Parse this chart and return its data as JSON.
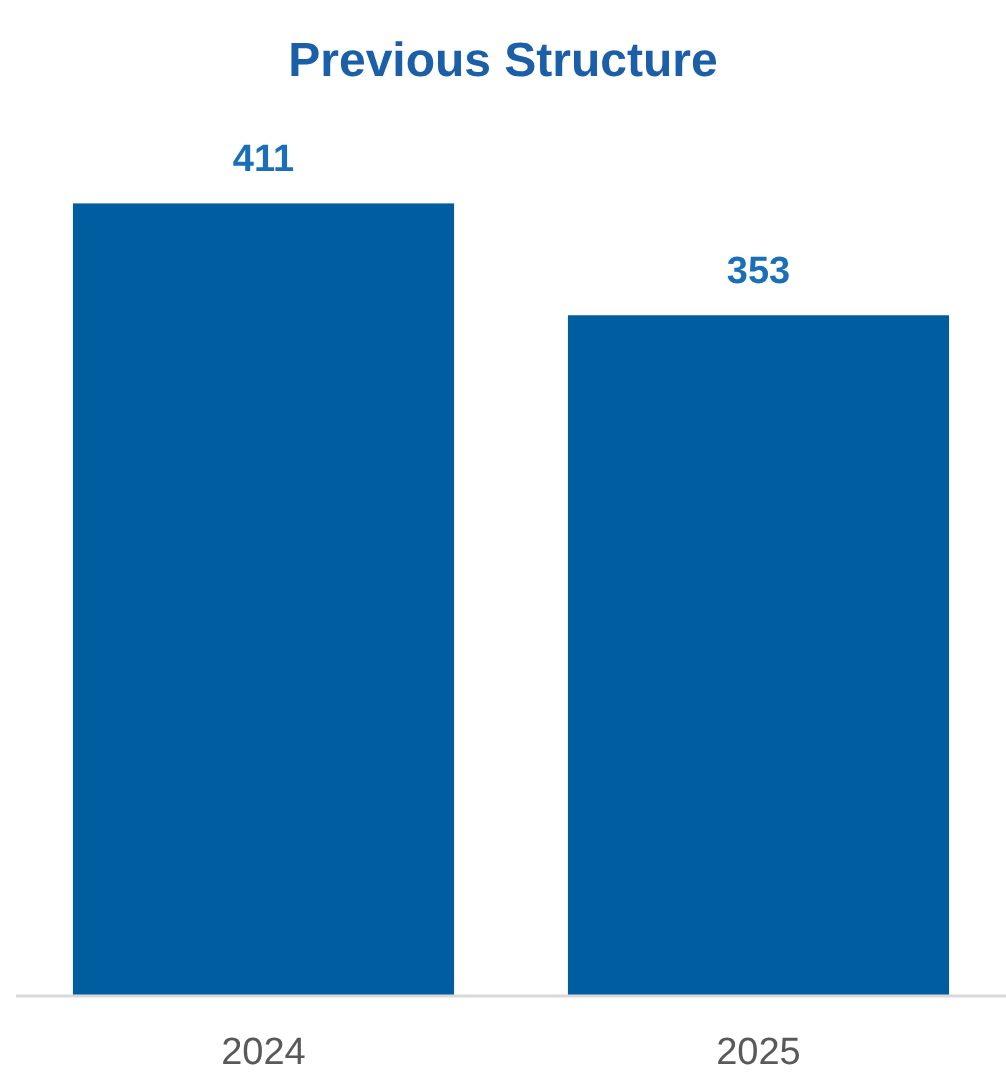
{
  "chart_data": {
    "type": "bar",
    "title": "Previous Structure",
    "categories": [
      "2024",
      "2025"
    ],
    "values": [
      411,
      353
    ],
    "color": "#005da0",
    "data_labels": true
  }
}
